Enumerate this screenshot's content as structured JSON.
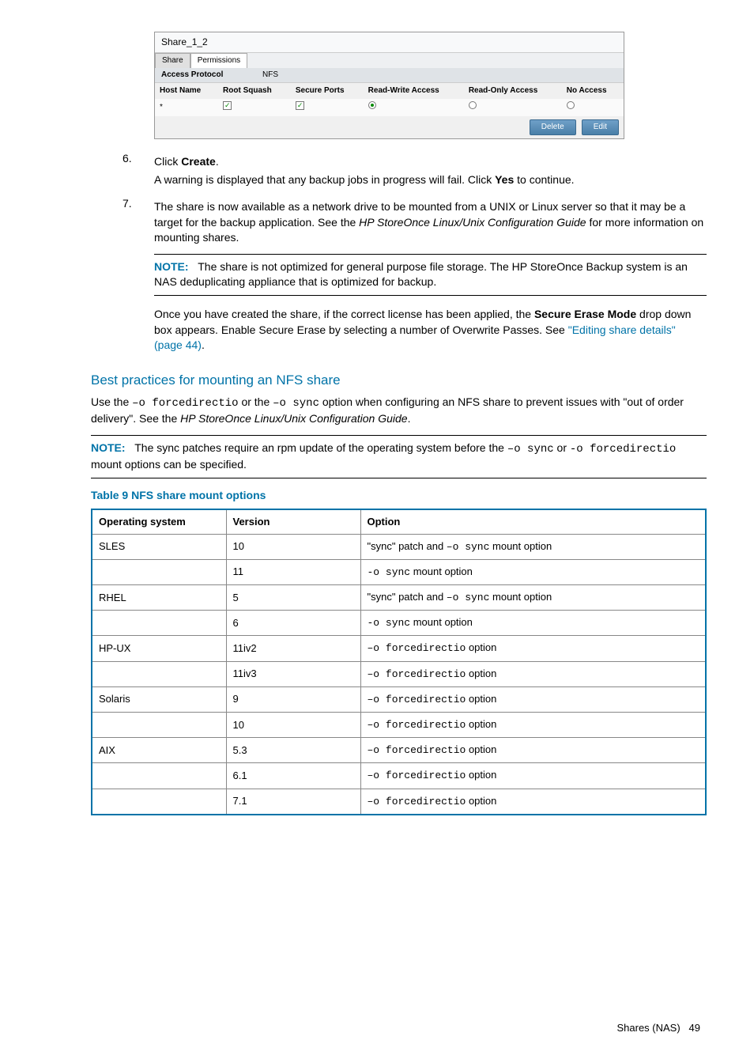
{
  "screenshot_panel": {
    "title": "Share_1_2",
    "tabs": [
      "Share",
      "Permissions"
    ],
    "access_protocol_label": "Access Protocol",
    "access_protocol_value": "NFS",
    "columns": [
      "Host Name",
      "Root Squash",
      "Secure Ports",
      "Read-Write Access",
      "Read-Only Access",
      "No Access"
    ],
    "row": {
      "host": "*",
      "root_squash": true,
      "secure_ports": true,
      "rw": true,
      "ro": false,
      "no": false
    },
    "buttons": [
      "Delete",
      "Edit"
    ]
  },
  "steps": {
    "step6_num": "6.",
    "step6_line1a": "Click ",
    "step6_line1b": "Create",
    "step6_line1c": ".",
    "step6_line2a": "A warning is displayed that any backup jobs in progress will fail. Click ",
    "step6_line2b": "Yes",
    "step6_line2c": " to continue.",
    "step7_num": "7.",
    "step7_text_a": "The share is now available as a network drive to be mounted from a UNIX or Linux server so that it may be a target for the backup application. See the ",
    "step7_text_b": "HP StoreOnce Linux/Unix Configuration Guide",
    "step7_text_c": " for more information on mounting shares."
  },
  "note1": {
    "label": "NOTE:",
    "text": "The share is not optimized for general purpose file storage. The HP StoreOnce Backup system is an NAS deduplicating appliance that is optimized for backup."
  },
  "secure_erase": {
    "a": "Once you have created the share, if the correct license has been applied, the ",
    "b": "Secure Erase Mode",
    "c": " drop down box appears. Enable Secure Erase by selecting a number of Overwrite Passes. See ",
    "link": "\"Editing share details\" (page 44)",
    "d": "."
  },
  "section_heading": "Best practices for mounting an NFS share",
  "best_practices": {
    "a": "Use the ",
    "b": "–o forcedirectio",
    "c": " or the ",
    "d": "–o sync",
    "e": " option when configuring an NFS share to prevent issues with \"out of order delivery\". See the ",
    "f": "HP StoreOnce Linux/Unix Configuration Guide",
    "g": "."
  },
  "note2": {
    "label": "NOTE:",
    "a": "The sync patches require an rpm update of the operating system before the ",
    "b": "–o sync",
    "c": " or ",
    "d": "-o forcedirectio",
    "e": " mount options can be specified."
  },
  "table_caption": "Table 9 NFS share mount options",
  "table": {
    "headers": [
      "Operating system",
      "Version",
      "Option"
    ],
    "rows": [
      {
        "os": "SLES",
        "ver": "10",
        "opt_a": "\"sync\" patch and ",
        "opt_b": "–o sync",
        "opt_c": " mount option"
      },
      {
        "os": "",
        "ver": "11",
        "opt_a": "",
        "opt_b": "-o sync",
        "opt_c": " mount option"
      },
      {
        "os": "RHEL",
        "ver": "5",
        "opt_a": "\"sync\" patch and ",
        "opt_b": "–o sync",
        "opt_c": " mount option"
      },
      {
        "os": "",
        "ver": "6",
        "opt_a": "",
        "opt_b": "-o sync",
        "opt_c": " mount option"
      },
      {
        "os": "HP-UX",
        "ver": "11iv2",
        "opt_a": "",
        "opt_b": "–o forcedirectio",
        "opt_c": " option"
      },
      {
        "os": "",
        "ver": "11iv3",
        "opt_a": "",
        "opt_b": "–o forcedirectio",
        "opt_c": " option"
      },
      {
        "os": "Solaris",
        "ver": "9",
        "opt_a": "",
        "opt_b": "–o forcedirectio",
        "opt_c": " option"
      },
      {
        "os": "",
        "ver": "10",
        "opt_a": "",
        "opt_b": "–o forcedirectio",
        "opt_c": " option"
      },
      {
        "os": "AIX",
        "ver": "5.3",
        "opt_a": "",
        "opt_b": "–o forcedirectio",
        "opt_c": " option"
      },
      {
        "os": "",
        "ver": "6.1",
        "opt_a": "",
        "opt_b": "–o forcedirectio",
        "opt_c": " option"
      },
      {
        "os": "",
        "ver": "7.1",
        "opt_a": "",
        "opt_b": "–o forcedirectio",
        "opt_c": " option"
      }
    ]
  },
  "footer": {
    "label": "Shares (NAS)",
    "page": "49"
  },
  "colors": {
    "accent": "#0073a8",
    "border": "#888888",
    "bg": "#ffffff"
  }
}
